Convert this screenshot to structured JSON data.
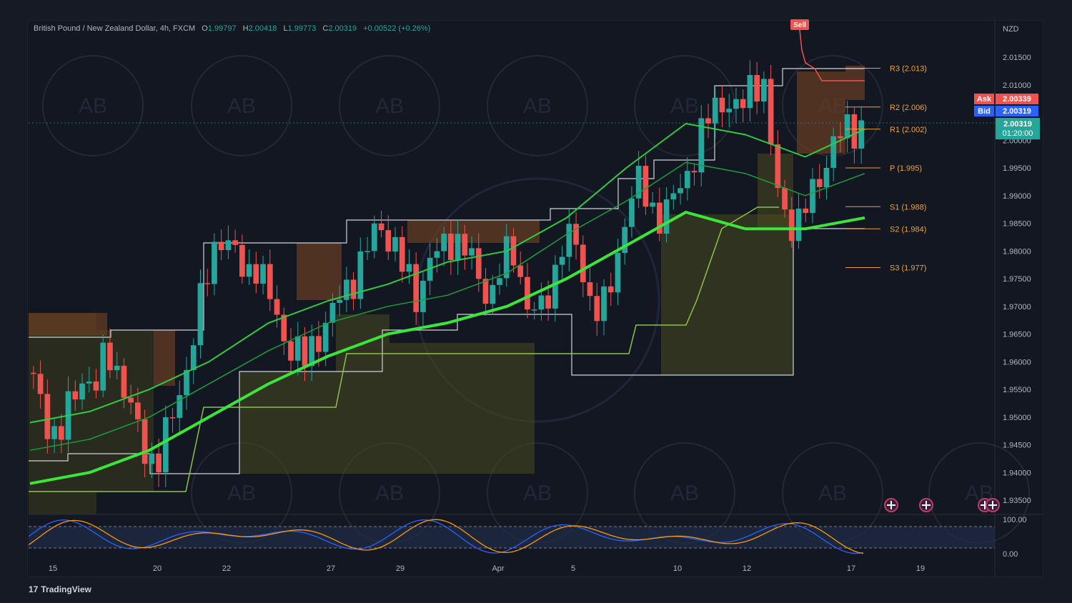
{
  "header": {
    "symbol": "British Pound / New Zealand Dollar, 4h, FXCM",
    "open_label": "O",
    "open": "1.99797",
    "high_label": "H",
    "high": "2.00418",
    "low_label": "L",
    "low": "1.99773",
    "close_label": "C",
    "close": "2.00319",
    "change": "+0.00522 (+0.26%)"
  },
  "price_scale": {
    "currency": "NZD",
    "ticks": [
      "2.01500",
      "2.01000",
      "2.00000",
      "1.99500",
      "1.99000",
      "1.98500",
      "1.98000",
      "1.97500",
      "1.97000",
      "1.96500",
      "1.96000",
      "1.95500",
      "1.95000",
      "1.94500",
      "1.94000",
      "1.93500"
    ],
    "ask_label": "Ask",
    "ask": "2.00339",
    "bid_label": "Bid",
    "bid": "2.00319",
    "last": "2.00319",
    "countdown": "01:20:00"
  },
  "time_axis": {
    "labels": [
      "15",
      "20",
      "22",
      "27",
      "29",
      "Apr",
      "5",
      "10",
      "12",
      "17",
      "19"
    ]
  },
  "pivots": [
    {
      "label": "R3 (2.013)",
      "value": 2.013
    },
    {
      "label": "R2 (2.006)",
      "value": 2.006
    },
    {
      "label": "R1 (2.002)",
      "value": 2.002
    },
    {
      "label": "P (1.995)",
      "value": 1.995
    },
    {
      "label": "S1 (1.988)",
      "value": 1.988
    },
    {
      "label": "S2 (1.984)",
      "value": 1.984
    },
    {
      "label": "S3 (1.977)",
      "value": 1.977
    }
  ],
  "signal": {
    "label": "Sell"
  },
  "oscillator": {
    "ticks": [
      "100.00",
      "0.00"
    ],
    "upper_level": 80,
    "lower_level": 20
  },
  "branding": {
    "logo": "TradingView",
    "logo_mark": "17"
  },
  "colors": {
    "up": "#26a69a",
    "down": "#ef5350",
    "ema": "#00e676",
    "pivot": "#f0a040",
    "background": "#131722"
  },
  "chart_data": {
    "type": "candlestick",
    "timeframe": "4h",
    "ylim": [
      1.93,
      2.019
    ],
    "y_unit": "NZD",
    "candles_approx_close": [
      1.956,
      1.95,
      1.946,
      1.952,
      1.958,
      1.955,
      1.962,
      1.958,
      1.95,
      1.944,
      1.942,
      1.948,
      1.956,
      1.965,
      1.975,
      1.984,
      1.98,
      1.976,
      1.978,
      1.972,
      1.966,
      1.962,
      1.96,
      1.965,
      1.968,
      1.972,
      1.976,
      1.98,
      1.985,
      1.982,
      1.976,
      1.972,
      1.978,
      1.98,
      1.983,
      1.98,
      1.975,
      1.972,
      1.978,
      1.98,
      1.97,
      1.968,
      1.975,
      1.983,
      1.98,
      1.972,
      1.968,
      1.976,
      1.988,
      1.992,
      1.988,
      1.986,
      1.99,
      1.995,
      2.0,
      2.006,
      2.008,
      2.004,
      2.01,
      2.012,
      1.992,
      1.986,
      1.985,
      1.99,
      1.996,
      2.0,
      2.002,
      2.003
    ],
    "series": [
      {
        "name": "EMA fast",
        "values": [
          1.949,
          1.951,
          1.955,
          1.96,
          1.967,
          1.971,
          1.974,
          1.978,
          1.98,
          1.986,
          1.995,
          2.003,
          2.001,
          1.997,
          2.002
        ]
      },
      {
        "name": "EMA mid",
        "values": [
          1.944,
          1.946,
          1.95,
          1.956,
          1.962,
          1.967,
          1.97,
          1.972,
          1.976,
          1.983,
          1.989,
          1.996,
          1.994,
          1.99,
          1.994
        ]
      },
      {
        "name": "EMA slow",
        "values": [
          1.938,
          1.94,
          1.944,
          1.95,
          1.956,
          1.961,
          1.965,
          1.967,
          1.97,
          1.975,
          1.981,
          1.987,
          1.984,
          1.984,
          1.986
        ]
      }
    ]
  }
}
